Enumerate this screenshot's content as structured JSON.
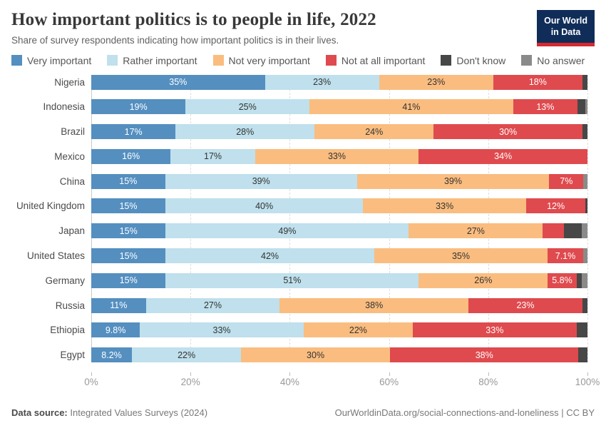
{
  "header": {
    "title": "How important politics is to people in life, 2022",
    "subtitle": "Share of survey respondents indicating how important politics is in their lives.",
    "logo": {
      "line1": "Our World",
      "line2": "in Data",
      "bg_color": "#102d59",
      "stripe_color": "#d7282f"
    }
  },
  "chart_data": {
    "type": "bar",
    "orientation": "horizontal",
    "stacked": true,
    "categories": [
      "Nigeria",
      "Indonesia",
      "Brazil",
      "Mexico",
      "China",
      "United Kingdom",
      "Japan",
      "United States",
      "Germany",
      "Russia",
      "Ethiopia",
      "Egypt"
    ],
    "series": [
      {
        "name": "Very important",
        "color": "#548fc0",
        "label_color": "#ffffff",
        "values": [
          35,
          19,
          17,
          16,
          15,
          15,
          15,
          15,
          15,
          11,
          9.8,
          8.2
        ],
        "labels": [
          "35%",
          "19%",
          "17%",
          "16%",
          "15%",
          "15%",
          "15%",
          "15%",
          "15%",
          "11%",
          "9.8%",
          "8.2%"
        ]
      },
      {
        "name": "Rather important",
        "color": "#bfe0ec",
        "label_color": "#333333",
        "values": [
          23,
          25,
          28,
          17,
          39,
          40,
          49,
          42,
          51,
          27,
          33,
          22
        ],
        "labels": [
          "23%",
          "25%",
          "28%",
          "17%",
          "39%",
          "40%",
          "49%",
          "42%",
          "51%",
          "27%",
          "33%",
          "22%"
        ]
      },
      {
        "name": "Not very important",
        "color": "#fabd7f",
        "label_color": "#333333",
        "values": [
          23,
          41,
          24,
          33,
          39,
          33,
          27,
          35,
          26,
          38,
          22,
          30
        ],
        "labels": [
          "23%",
          "41%",
          "24%",
          "33%",
          "39%",
          "33%",
          "27%",
          "35%",
          "26%",
          "38%",
          "22%",
          "30%"
        ]
      },
      {
        "name": "Not at all important",
        "color": "#df4a4e",
        "label_color": "#ffffff",
        "values": [
          18,
          13,
          30,
          34,
          7,
          12,
          4.3,
          7.1,
          5.8,
          23,
          33,
          38
        ],
        "labels": [
          "18%",
          "13%",
          "30%",
          "34%",
          "7%",
          "12%",
          "",
          "7.1%",
          "5.8%",
          "23%",
          "33%",
          "38%"
        ]
      },
      {
        "name": "Don't know",
        "color": "#474747",
        "label_color": "#ffffff",
        "values": [
          1,
          1.5,
          1,
          0,
          0,
          0.4,
          3.6,
          0,
          1.1,
          1,
          2.2,
          1.8
        ],
        "labels": [
          "",
          "",
          "",
          "",
          "",
          "",
          "",
          "",
          "",
          "",
          "",
          ""
        ]
      },
      {
        "name": "No answer",
        "color": "#8a8a8a",
        "label_color": "#ffffff",
        "values": [
          0,
          0.5,
          0,
          0,
          0.8,
          0,
          1.1,
          0.9,
          1.1,
          0,
          0,
          0
        ],
        "labels": [
          "",
          "",
          "",
          "",
          "",
          "",
          "",
          "",
          "",
          "",
          "",
          ""
        ]
      }
    ],
    "x_axis": {
      "tick_labels": [
        "0%",
        "20%",
        "40%",
        "60%",
        "80%",
        "100%"
      ],
      "tick_positions": [
        0,
        20,
        40,
        60,
        80,
        100
      ],
      "range": [
        0,
        100
      ],
      "gridlines": "dashed vertical"
    },
    "legend_position": "top"
  },
  "footer": {
    "datasource_label": "Data source:",
    "datasource_value": " Integrated Values Surveys (2024)",
    "attribution": "OurWorldinData.org/social-connections-and-loneliness | CC BY"
  }
}
